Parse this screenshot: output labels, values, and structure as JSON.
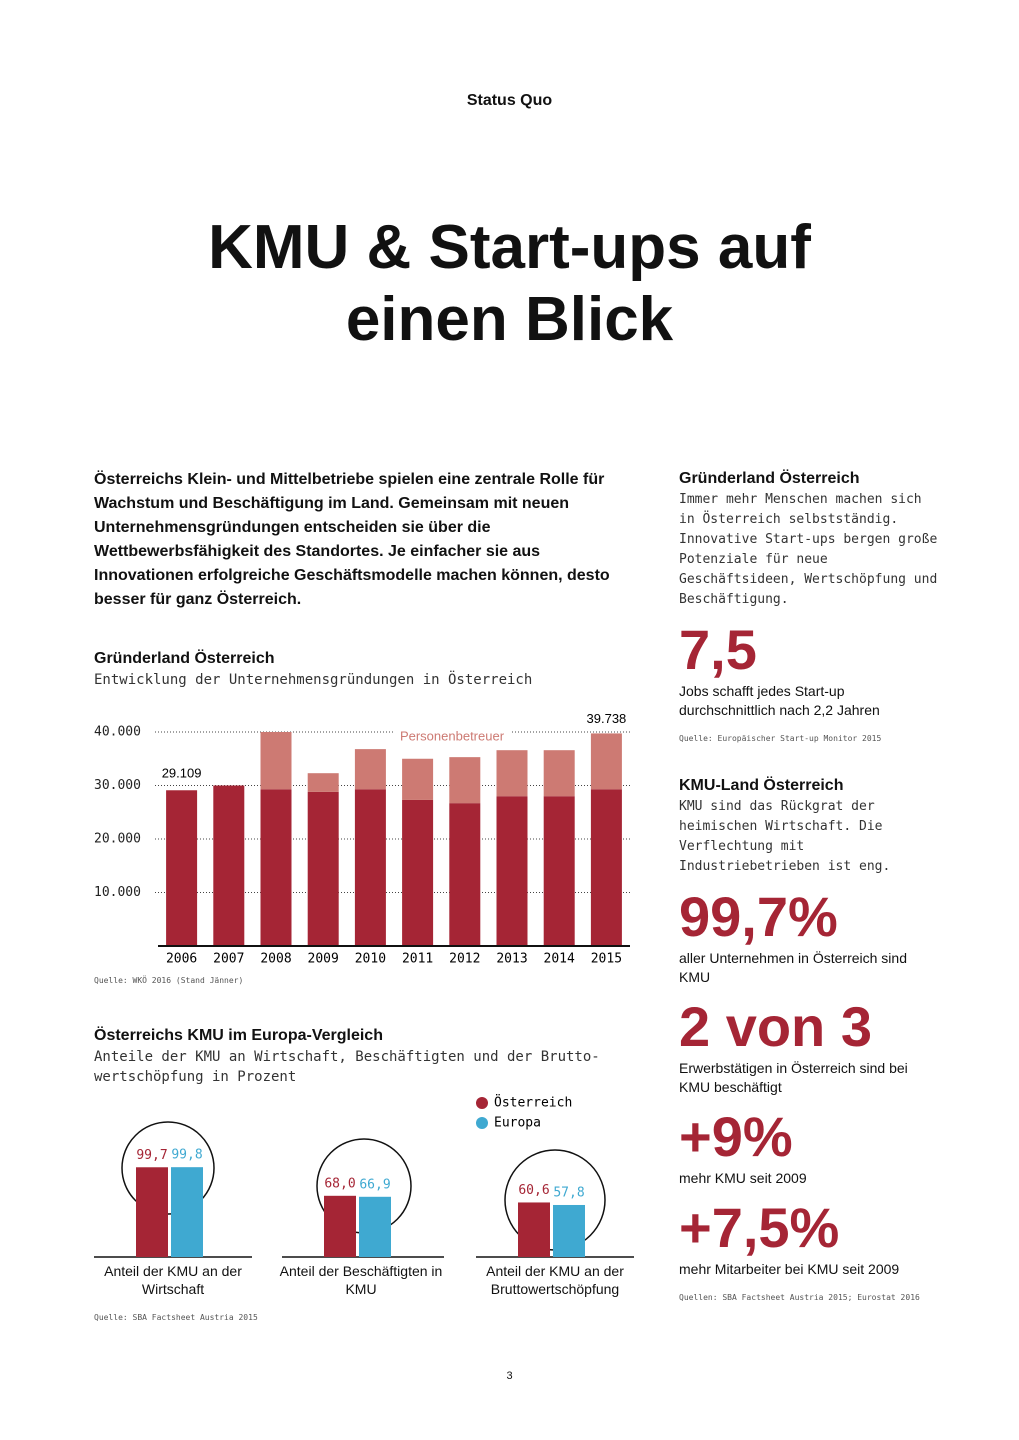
{
  "header": "Status Quo",
  "title_lines": [
    "KMU & Start-ups auf",
    "einen Blick"
  ],
  "intro": "Österreichs Klein- und Mittelbetriebe spielen eine zentrale Rolle für Wachstum und Beschäftigung im Land. Gemeinsam mit neuen Unternehmensgründungen entscheiden sie über die Wettbewerbsfähigkeit des Standortes. Je einfacher sie aus Innovationen erfolgreiche Geschäftsmodelle machen können, desto besser für ganz Österreich.",
  "chart_data": [
    {
      "type": "stacked_bar",
      "title": "Gründerland Österreich",
      "subtitle": "Entwicklung der Unternehmensgründungen in Österreich",
      "categories": [
        "2006",
        "2007",
        "2008",
        "2009",
        "2010",
        "2011",
        "2012",
        "2013",
        "2014",
        "2015"
      ],
      "series": [
        {
          "color": "#a52535",
          "values": [
            29109,
            30000,
            29300,
            28800,
            29300,
            27300,
            26700,
            28000,
            28000,
            29300
          ],
          "value_labels": [
            "29.109",
            null,
            null,
            null,
            null,
            null,
            null,
            null,
            null,
            null
          ]
        },
        {
          "name": "Personenbetreuer",
          "color": "#cd7a73",
          "values": [
            null,
            null,
            10700,
            3500,
            7500,
            7700,
            8600,
            8600,
            8600,
            10438
          ]
        }
      ],
      "annotations": [
        {
          "text": "39.738",
          "value": 39738
        }
      ],
      "ylim": [
        0,
        40000
      ],
      "yticks": [
        {
          "value": 10000,
          "label": "10.000"
        },
        {
          "value": 20000,
          "label": "20.000"
        },
        {
          "value": 30000,
          "label": "30.000"
        },
        {
          "value": 40000,
          "label": "40.000"
        }
      ],
      "grid": true,
      "source": "Quelle: WKÖ 2016 (Stand Jänner)"
    },
    {
      "type": "grouped_bar",
      "title": "Österreichs KMU im Europa-Vergleich",
      "subtitle": "Anteile der KMU an Wirtschaft, Beschäftigten und der Brutto-wertschöpfung in Prozent",
      "categories": [
        "Anteil der KMU an der Wirtschaft",
        "Anteil der Beschäftigten in KMU",
        "Anteil der KMU an der Bruttowertschöpfung"
      ],
      "series": [
        {
          "name": "Österreich",
          "color": "#a52535",
          "values": [
            99.7,
            68.0,
            60.6
          ],
          "value_labels": [
            "99,7",
            "68,0",
            "60,6"
          ]
        },
        {
          "name": "Europa",
          "color": "#3fa9d1",
          "values": [
            99.8,
            66.9,
            57.8
          ],
          "value_labels": [
            "99,8",
            "66,9",
            "57,8"
          ]
        }
      ],
      "source": "Quelle: SBA Factsheet Austria 2015"
    }
  ],
  "sidebar": [
    {
      "heading": "Gründerland Österreich",
      "text": "Immer mehr Menschen machen sich in Österreich selbstständig. Innovative Start-ups bergen große Potenziale für neue Geschäftsideen, Wertschöpfung und Beschäftigung.",
      "stats": [
        {
          "value": "7,5",
          "text": "Jobs schafft jedes Start-up durchschnittlich nach 2,2 Jahren"
        }
      ],
      "source": "Quelle: Europäischer Start-up Monitor 2015"
    },
    {
      "heading": "KMU-Land Österreich",
      "text": "KMU sind das Rückgrat der heimischen Wirtschaft. Die Verflechtung mit Industriebetrieben ist eng.",
      "stats": [
        {
          "value": "99,7%",
          "text": "aller Unternehmen in Österreich sind KMU"
        },
        {
          "value": "2 von 3",
          "text": "Erwerbstätigen in Österreich sind bei KMU beschäftigt"
        },
        {
          "value": "+9%",
          "text": "mehr KMU seit 2009"
        },
        {
          "value": "+7,5%",
          "text": "mehr Mitarbeiter bei KMU seit 2009"
        }
      ],
      "source": "Quellen: SBA Factsheet Austria 2015; Eurostat 2016"
    }
  ],
  "page_number": "3"
}
